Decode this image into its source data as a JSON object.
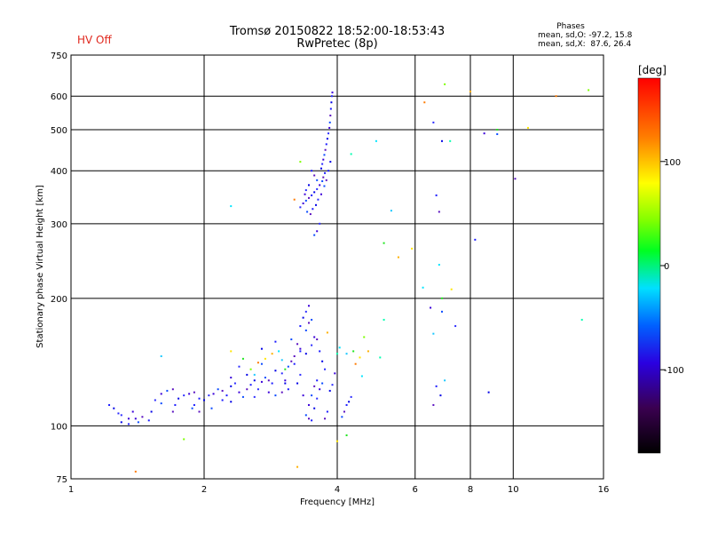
{
  "status": {
    "hv_label": "HV Off",
    "hv_color": "#e0281e"
  },
  "chart_data": {
    "type": "scatter",
    "title": "Tromsø 20150822 18:52:00-18:53:43",
    "subtitle": "RwPretec (8p)",
    "phase_info": {
      "heading": "Phases",
      "line_o": "mean, sd,O: -97.2, 15.8",
      "line_x": "mean, sd,X:  87.6, 26.4"
    },
    "xlabel": "Frequency [MHz]",
    "ylabel": "Stationary phase Virtual Height [km]",
    "x_scale": "log",
    "y_scale": "log",
    "xlim": [
      1,
      16
    ],
    "ylim": [
      75,
      750
    ],
    "x_ticks": [
      1,
      2,
      4,
      6,
      8,
      10,
      16
    ],
    "x_tick_labels": [
      "1",
      "2",
      "4",
      "6",
      "8",
      "10",
      "16"
    ],
    "y_ticks": [
      75,
      100,
      200,
      300,
      400,
      500,
      600,
      750
    ],
    "y_tick_labels": [
      "75",
      "100",
      "200",
      "300",
      "400",
      "500",
      "600",
      "750"
    ],
    "grid": true,
    "colorbar": {
      "label": "[deg]",
      "range": [
        -180,
        180
      ],
      "tick_values": [
        100,
        0,
        -100
      ],
      "tick_labels": [
        "100",
        "0",
        "-100"
      ]
    },
    "series": [
      {
        "points": [
          [
            1.22,
            112
          ],
          [
            1.25,
            110
          ],
          [
            1.3,
            106
          ],
          [
            1.35,
            104
          ],
          [
            1.42,
            102
          ],
          [
            1.45,
            105
          ],
          [
            1.5,
            103
          ],
          [
            1.52,
            108
          ],
          [
            1.55,
            115
          ],
          [
            1.6,
            119
          ],
          [
            1.65,
            121
          ],
          [
            1.7,
            108
          ],
          [
            1.72,
            112
          ],
          [
            1.75,
            116
          ],
          [
            1.8,
            118
          ],
          [
            1.85,
            119
          ],
          [
            1.88,
            110
          ],
          [
            1.9,
            120
          ],
          [
            1.95,
            116
          ],
          [
            2.0,
            115
          ],
          [
            2.05,
            118
          ],
          [
            2.1,
            119
          ],
          [
            2.15,
            122
          ],
          [
            2.2,
            121
          ],
          [
            2.25,
            118
          ],
          [
            2.3,
            124
          ],
          [
            2.35,
            126
          ],
          [
            2.4,
            120
          ],
          [
            2.45,
            117
          ],
          [
            2.5,
            122
          ],
          [
            2.55,
            125
          ],
          [
            2.6,
            128
          ],
          [
            2.65,
            122
          ],
          [
            2.7,
            127
          ],
          [
            2.75,
            130
          ],
          [
            2.8,
            128
          ],
          [
            2.85,
            126
          ],
          [
            2.9,
            135
          ],
          [
            3.0,
            133
          ],
          [
            3.05,
            128
          ],
          [
            3.1,
            138
          ],
          [
            3.15,
            142
          ],
          [
            3.2,
            140
          ],
          [
            3.25,
            126
          ],
          [
            3.3,
            132
          ],
          [
            3.35,
            118
          ],
          [
            3.4,
            106
          ],
          [
            3.45,
            104
          ],
          [
            3.5,
            103
          ],
          [
            3.55,
            110
          ],
          [
            3.6,
            116
          ],
          [
            3.65,
            122
          ],
          [
            3.7,
            126
          ],
          [
            3.75,
            104
          ],
          [
            3.8,
            108
          ],
          [
            3.85,
            121
          ],
          [
            3.9,
            125
          ],
          [
            3.95,
            133
          ],
          [
            2.08,
            110
          ],
          [
            1.95,
            108
          ],
          [
            2.2,
            115
          ],
          [
            2.3,
            114
          ],
          [
            2.6,
            117
          ],
          [
            2.8,
            120
          ],
          [
            2.9,
            118
          ],
          [
            3.0,
            120
          ],
          [
            3.1,
            122
          ],
          [
            1.3,
            102
          ],
          [
            1.28,
            107
          ],
          [
            1.38,
            108
          ],
          [
            1.6,
            113
          ],
          [
            1.7,
            122
          ],
          [
            1.9,
            112
          ],
          [
            2.5,
            132
          ],
          [
            2.4,
            138
          ],
          [
            2.3,
            130
          ],
          [
            2.7,
            140
          ],
          [
            3.2,
            146
          ],
          [
            3.3,
            150
          ],
          [
            3.4,
            148
          ],
          [
            3.5,
            155
          ],
          [
            3.55,
            162
          ],
          [
            3.4,
            168
          ],
          [
            3.45,
            175
          ],
          [
            3.3,
            172
          ],
          [
            3.35,
            180
          ],
          [
            3.4,
            186
          ],
          [
            3.45,
            192
          ],
          [
            3.5,
            178
          ],
          [
            3.6,
            160
          ],
          [
            3.65,
            150
          ],
          [
            3.7,
            142
          ],
          [
            3.75,
            136
          ],
          [
            3.3,
            152
          ],
          [
            3.15,
            160
          ],
          [
            3.25,
            156
          ],
          [
            2.9,
            158
          ],
          [
            2.7,
            152
          ],
          [
            1.35,
            101
          ],
          [
            1.4,
            104
          ],
          [
            4.1,
            105
          ],
          [
            4.15,
            108
          ],
          [
            4.2,
            112
          ],
          [
            4.25,
            114
          ],
          [
            4.3,
            117
          ],
          [
            3.45,
            112
          ],
          [
            3.5,
            118
          ],
          [
            3.55,
            124
          ],
          [
            3.6,
            128
          ],
          [
            3.05,
            126
          ],
          [
            3.3,
            328
          ],
          [
            3.35,
            335
          ],
          [
            3.4,
            340
          ],
          [
            3.45,
            345
          ],
          [
            3.5,
            350
          ],
          [
            3.55,
            356
          ],
          [
            3.6,
            362
          ],
          [
            3.65,
            370
          ],
          [
            3.7,
            378
          ],
          [
            3.72,
            386
          ],
          [
            3.75,
            395
          ],
          [
            3.68,
            405
          ],
          [
            3.7,
            415
          ],
          [
            3.72,
            425
          ],
          [
            3.74,
            436
          ],
          [
            3.76,
            448
          ],
          [
            3.78,
            462
          ],
          [
            3.8,
            476
          ],
          [
            3.82,
            490
          ],
          [
            3.84,
            505
          ],
          [
            3.85,
            520
          ],
          [
            3.86,
            540
          ],
          [
            3.87,
            560
          ],
          [
            3.88,
            580
          ],
          [
            3.89,
            600
          ],
          [
            3.9,
            612
          ],
          [
            3.6,
            380
          ],
          [
            3.55,
            390
          ],
          [
            3.5,
            400
          ],
          [
            3.45,
            370
          ],
          [
            3.4,
            360
          ],
          [
            3.38,
            352
          ],
          [
            3.42,
            320
          ],
          [
            3.48,
            316
          ],
          [
            3.52,
            325
          ],
          [
            3.58,
            332
          ],
          [
            3.62,
            342
          ],
          [
            3.68,
            352
          ],
          [
            3.74,
            368
          ],
          [
            3.78,
            380
          ],
          [
            3.82,
            400
          ],
          [
            3.86,
            420
          ],
          [
            3.65,
            300
          ],
          [
            3.6,
            288
          ],
          [
            3.55,
            282
          ],
          [
            6.6,
            112
          ],
          [
            6.7,
            124
          ],
          [
            6.85,
            118
          ],
          [
            7.4,
            172
          ],
          [
            6.5,
            190
          ],
          [
            6.9,
            186
          ],
          [
            6.8,
            320
          ],
          [
            6.7,
            350
          ],
          [
            6.9,
            470
          ],
          [
            6.6,
            520
          ],
          [
            8.6,
            490
          ],
          [
            9.2,
            488
          ],
          [
            10.1,
            383
          ],
          [
            8.2,
            275
          ],
          [
            8.8,
            120
          ]
        ],
        "color_hint": "blue / blue-violet (O-mode)"
      },
      {
        "points": [
          [
            2.95,
            150
          ],
          [
            3.0,
            143
          ],
          [
            3.05,
            136
          ],
          [
            2.75,
            144
          ],
          [
            2.85,
            148
          ],
          [
            2.65,
            141
          ],
          [
            2.55,
            136
          ],
          [
            4.0,
            148
          ],
          [
            4.05,
            153
          ],
          [
            4.2,
            148
          ],
          [
            4.35,
            150
          ],
          [
            4.5,
            145
          ],
          [
            4.7,
            150
          ],
          [
            3.2,
            342
          ],
          [
            3.3,
            420
          ],
          [
            4.3,
            438
          ],
          [
            4.9,
            470
          ],
          [
            5.3,
            322
          ],
          [
            5.1,
            270
          ],
          [
            5.9,
            262
          ],
          [
            5.5,
            250
          ],
          [
            6.3,
            580
          ],
          [
            7.0,
            640
          ],
          [
            7.2,
            470
          ],
          [
            6.8,
            240
          ],
          [
            7.0,
            128
          ],
          [
            6.9,
            200
          ],
          [
            7.25,
            210
          ],
          [
            8.0,
            615
          ],
          [
            12.5,
            600
          ],
          [
            14.8,
            620
          ],
          [
            14.3,
            178
          ],
          [
            2.3,
            330
          ],
          [
            1.6,
            146
          ],
          [
            4.2,
            95
          ],
          [
            4.0,
            92
          ],
          [
            3.25,
            80
          ],
          [
            1.4,
            78
          ],
          [
            1.8,
            93
          ],
          [
            5.1,
            178
          ],
          [
            4.55,
            131
          ],
          [
            2.6,
            132
          ],
          [
            2.45,
            144
          ],
          [
            2.3,
            150
          ],
          [
            3.8,
            166
          ],
          [
            4.4,
            140
          ],
          [
            4.6,
            162
          ],
          [
            5.0,
            145
          ],
          [
            6.25,
            212
          ],
          [
            6.6,
            165
          ],
          [
            9.2,
            500
          ],
          [
            10.8,
            505
          ]
        ],
        "color_hint": "cyan / green / yellow / orange (X-mode)"
      }
    ]
  }
}
